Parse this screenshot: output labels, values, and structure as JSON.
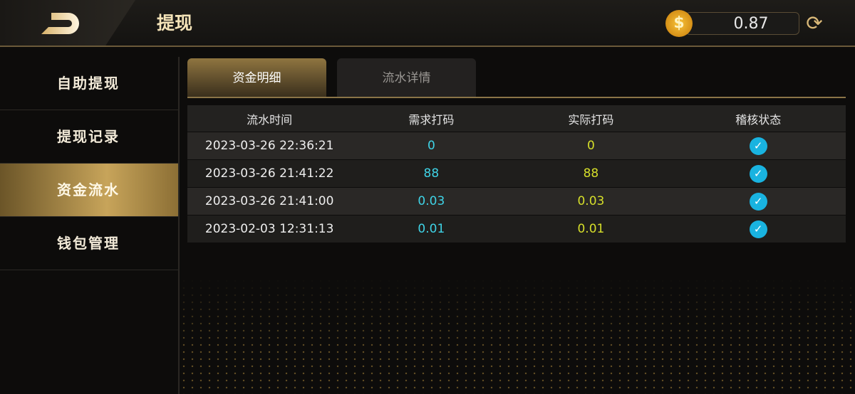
{
  "header": {
    "title": "提现",
    "balance": "0.87",
    "back_icon": "back-arrow-icon",
    "coin_icon": "dollar-coin-icon",
    "refresh_icon": "refresh-icon"
  },
  "sidebar": {
    "items": [
      {
        "label": "自助提现"
      },
      {
        "label": "提现记录"
      },
      {
        "label": "资金流水",
        "active": true
      },
      {
        "label": "钱包管理"
      }
    ]
  },
  "tabs": [
    {
      "label": "资金明细",
      "active": true
    },
    {
      "label": "流水详情"
    }
  ],
  "table": {
    "headers": [
      "流水时间",
      "需求打码",
      "实际打码",
      "稽核状态"
    ],
    "rows": [
      {
        "time": "2023-03-26 22:36:21",
        "required": "0",
        "actual": "0",
        "status": "check"
      },
      {
        "time": "2023-03-26 21:41:22",
        "required": "88",
        "actual": "88",
        "status": "check"
      },
      {
        "time": "2023-03-26 21:41:00",
        "required": "0.03",
        "actual": "0.03",
        "status": "check"
      },
      {
        "time": "2023-02-03 12:31:13",
        "required": "0.01",
        "actual": "0.01",
        "status": "check"
      }
    ]
  },
  "colors": {
    "required": "#3fd3e6",
    "actual": "#d6df2a",
    "check": "#19b3e0",
    "accent": "#c7a45a"
  }
}
